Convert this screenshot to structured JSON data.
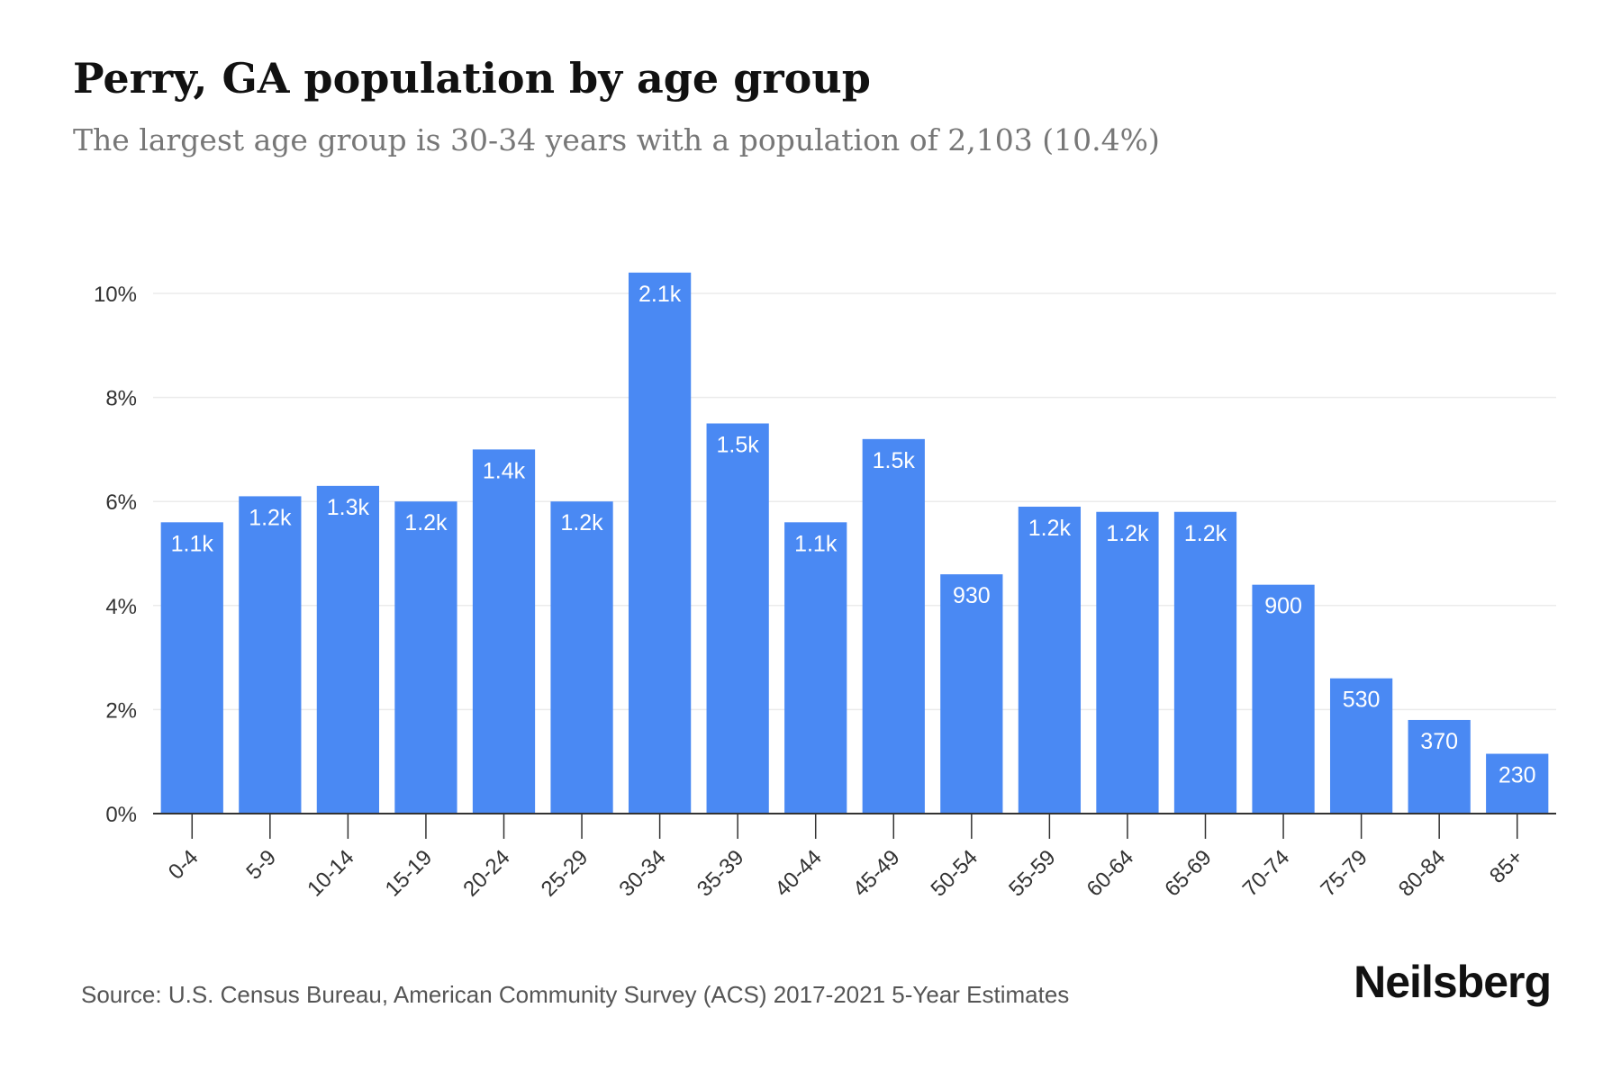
{
  "title": "Perry, GA population by age group",
  "subtitle": "The largest age group is 30-34 years with a population of 2,103 (10.4%)",
  "source": "Source: U.S. Census Bureau, American Community Survey (ACS) 2017-2021 5-Year Estimates",
  "brand": "Neilsberg",
  "colors": {
    "bar": "#4a89f3",
    "grid": "#ebebeb",
    "axis": "#333333",
    "bar_label": "#ffffff"
  },
  "chart_data": {
    "type": "bar",
    "title": "Perry, GA population by age group",
    "xlabel": "",
    "ylabel": "",
    "ylim": [
      0,
      10
    ],
    "yticks": [
      0,
      2,
      4,
      6,
      8,
      10
    ],
    "ytick_labels": [
      "0%",
      "2%",
      "4%",
      "6%",
      "8%",
      "10%"
    ],
    "grid": true,
    "categories": [
      "0-4",
      "5-9",
      "10-14",
      "15-19",
      "20-24",
      "25-29",
      "30-34",
      "35-39",
      "40-44",
      "45-49",
      "50-54",
      "55-59",
      "60-64",
      "65-69",
      "70-74",
      "75-79",
      "80-84",
      "85+"
    ],
    "values": [
      5.6,
      6.1,
      6.3,
      6.0,
      7.0,
      6.0,
      10.4,
      7.5,
      5.6,
      7.2,
      4.6,
      5.9,
      5.8,
      5.8,
      4.4,
      2.6,
      1.8,
      1.15
    ],
    "data_labels": [
      "1.1k",
      "1.2k",
      "1.3k",
      "1.2k",
      "1.4k",
      "1.2k",
      "2.1k",
      "1.5k",
      "1.1k",
      "1.5k",
      "930",
      "1.2k",
      "1.2k",
      "1.2k",
      "900",
      "530",
      "370",
      "230"
    ]
  }
}
